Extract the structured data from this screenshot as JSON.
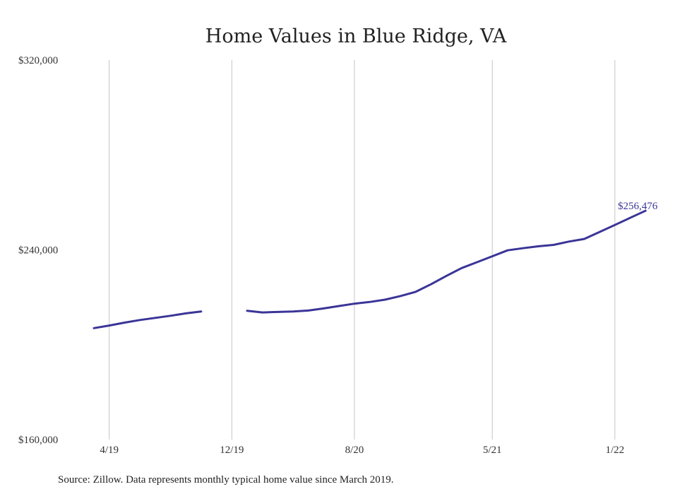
{
  "chart_data": {
    "type": "line",
    "title": "Home Values in Blue Ridge, VA",
    "xlabel": "",
    "ylabel": "",
    "ylim": [
      160000,
      320000
    ],
    "y_ticks": [
      "$160,000",
      "$240,000",
      "$320,000"
    ],
    "x_ticks": [
      "4/19",
      "12/19",
      "8/20",
      "5/21",
      "1/22"
    ],
    "grid": "vertical",
    "line_color": "#3a3597",
    "series": [
      {
        "x": [
          "2019-03",
          "2019-04",
          "2019-05",
          "2019-06",
          "2019-07",
          "2019-08",
          "2019-09",
          "2019-10",
          "2019-11",
          "2019-12",
          "2020-01",
          "2020-02",
          "2020-03",
          "2020-04",
          "2020-05",
          "2020-06",
          "2020-07",
          "2020-08",
          "2020-09",
          "2020-10",
          "2020-11",
          "2020-12",
          "2021-01",
          "2021-02",
          "2021-03",
          "2021-04",
          "2021-05",
          "2021-06",
          "2021-07",
          "2021-08",
          "2021-09",
          "2021-10",
          "2021-11",
          "2021-12",
          "2022-01",
          "2022-02",
          "2022-03"
        ],
        "values": [
          207000,
          208100,
          209300,
          210400,
          211300,
          212200,
          213200,
          214000,
          null,
          null,
          214300,
          213600,
          213800,
          214000,
          214400,
          215300,
          216300,
          217300,
          218000,
          219000,
          220500,
          222300,
          225500,
          229000,
          232300,
          234800,
          237300,
          239800,
          240700,
          241500,
          242100,
          243500,
          244600,
          247500,
          250500,
          253500,
          256476
        ]
      }
    ],
    "end_label": "$256,476",
    "source": "Source: Zillow. Data represents monthly typical home value since March 2019."
  }
}
